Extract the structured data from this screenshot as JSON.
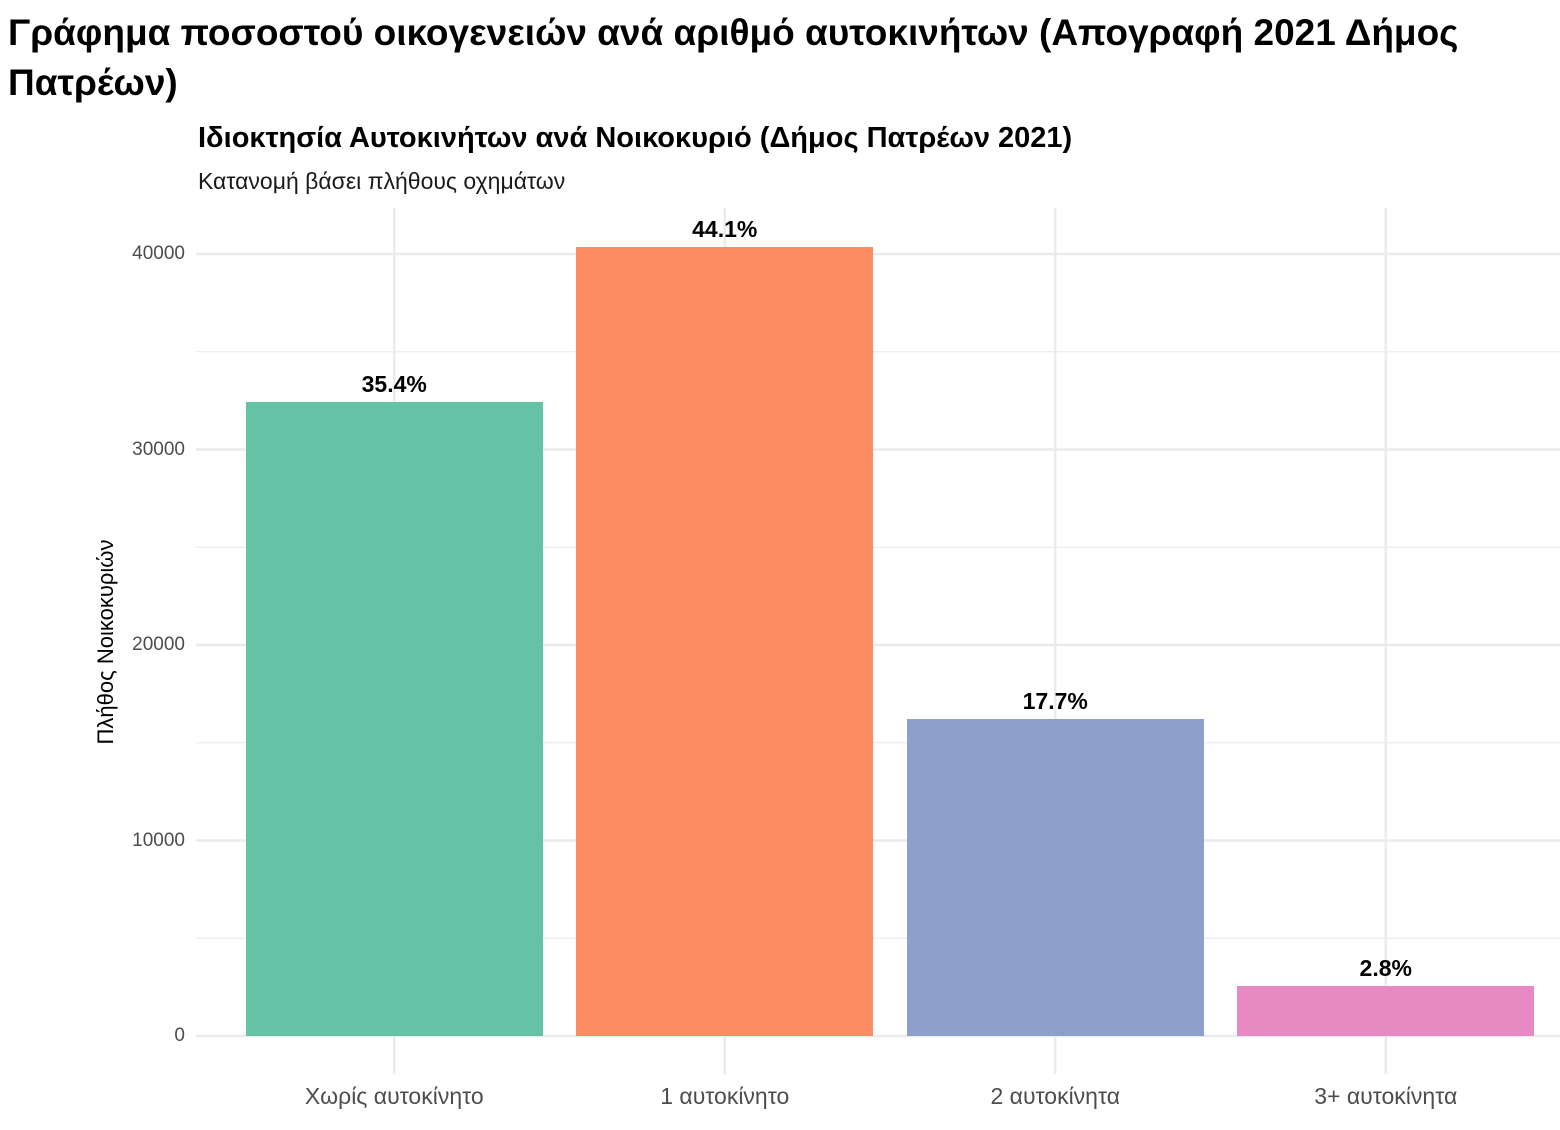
{
  "page": {
    "title": "Γράφημα ποσοστού οικογενειών ανά αριθμό αυτοκινήτων (Απογραφή 2021 Δήμος Πατρέων)"
  },
  "chart_data": {
    "type": "bar",
    "title": "Ιδιοκτησία Αυτοκινήτων ανά Νοικοκυριό (Δήμος Πατρέων 2021)",
    "subtitle": "Κατανομή βάσει πλήθους οχημάτων",
    "xlabel": "",
    "ylabel": "Πλήθος Νοικοκυριών",
    "categories": [
      "Χωρίς αυτοκίνητο",
      "1 αυτοκίνητο",
      "2 αυτοκίνητα",
      "3+ αυτοκίνητα"
    ],
    "values": [
      32430,
      40360,
      16220,
      2560
    ],
    "data_labels": [
      "35.4%",
      "44.1%",
      "17.7%",
      "2.8%"
    ],
    "colors": [
      "#66c2a5",
      "#fc8d62",
      "#8da0cb",
      "#e78ac3"
    ],
    "ylim": [
      0,
      44000
    ],
    "yticks": [
      0,
      10000,
      20000,
      30000,
      40000
    ],
    "ytick_labels": [
      "0",
      "10000",
      "20000",
      "30000",
      "40000"
    ],
    "grid": true,
    "legend": "none"
  }
}
